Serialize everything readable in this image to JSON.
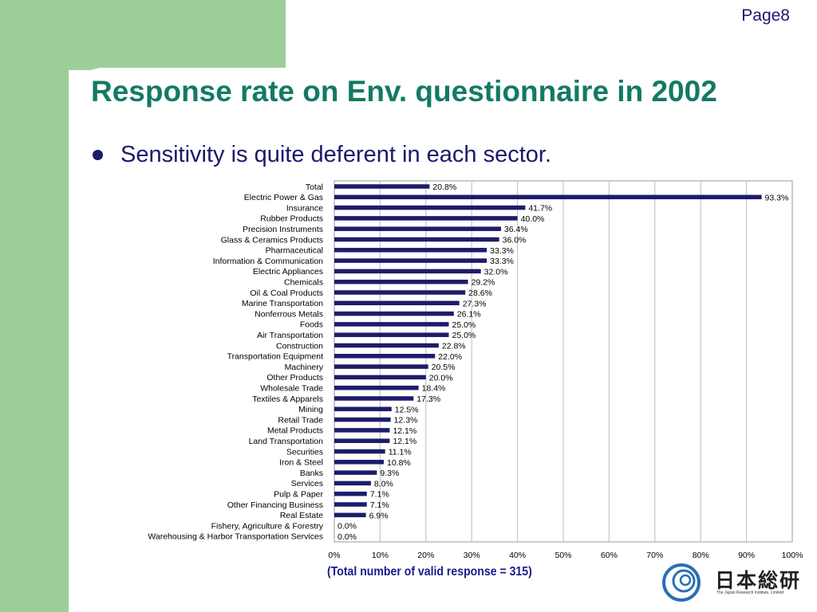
{
  "page": {
    "number": "Page8"
  },
  "slide": {
    "title": "Response rate on Env. questionnaire in 2002",
    "bullet": "Sensitivity is quite deferent in each sector."
  },
  "footnote": "(Total number of valid response = 315)",
  "logo": {
    "text": "日本総研",
    "subtitle": "The Japan Research Institute, Limited"
  },
  "colors": {
    "bar": "#1c1c6b",
    "title": "#137a64",
    "background_green": "#9ccf98"
  },
  "chart_data": {
    "type": "bar",
    "orientation": "horizontal",
    "categories": [
      "Total",
      "Electric Power & Gas",
      "Insurance",
      "Rubber Products",
      "Precision Instruments",
      "Glass & Ceramics Products",
      "Pharmaceutical",
      "Information & Communication",
      "Electric Appliances",
      "Chemicals",
      "Oil & Coal Products",
      "Marine Transportation",
      "Nonferrous Metals",
      "Foods",
      "Air Transportation",
      "Construction",
      "Transportation Equipment",
      "Machinery",
      "Other Products",
      "Wholesale Trade",
      "Textiles & Apparels",
      "Mining",
      "Retail Trade",
      "Metal Products",
      "Land Transportation",
      "Securities",
      "Iron & Steel",
      "Banks",
      "Services",
      "Pulp & Paper",
      "Other Financing Business",
      "Real Estate",
      "Fishery, Agriculture & Forestry",
      "Warehousing & Harbor Transportation Services"
    ],
    "values": [
      20.8,
      93.3,
      41.7,
      40.0,
      36.4,
      36.0,
      33.3,
      33.3,
      32.0,
      29.2,
      28.6,
      27.3,
      26.1,
      25.0,
      25.0,
      22.8,
      22.0,
      20.5,
      20.0,
      18.4,
      17.3,
      12.5,
      12.3,
      12.1,
      12.1,
      11.1,
      10.8,
      9.3,
      8.0,
      7.1,
      7.1,
      6.9,
      0.0,
      0.0
    ],
    "value_labels": [
      "20.8%",
      "93.3%",
      "41.7%",
      "40.0%",
      "36.4%",
      "36.0%",
      "33.3%",
      "33.3%",
      "32.0%",
      "29.2%",
      "28.6%",
      "27.3%",
      "26.1%",
      "25.0%",
      "25.0%",
      "22.8%",
      "22.0%",
      "20.5%",
      "20.0%",
      "18.4%",
      "17.3%",
      "12.5%",
      "12.3%",
      "12.1%",
      "12.1%",
      "11.1%",
      "10.8%",
      "9.3%",
      "8.0%",
      "7.1%",
      "7.1%",
      "6.9%",
      "0.0%",
      "0.0%"
    ],
    "xlim": [
      0,
      100
    ],
    "xticks": [
      "0%",
      "10%",
      "20%",
      "30%",
      "40%",
      "50%",
      "60%",
      "70%",
      "80%",
      "90%",
      "100%"
    ],
    "grid": true,
    "legend": false
  }
}
